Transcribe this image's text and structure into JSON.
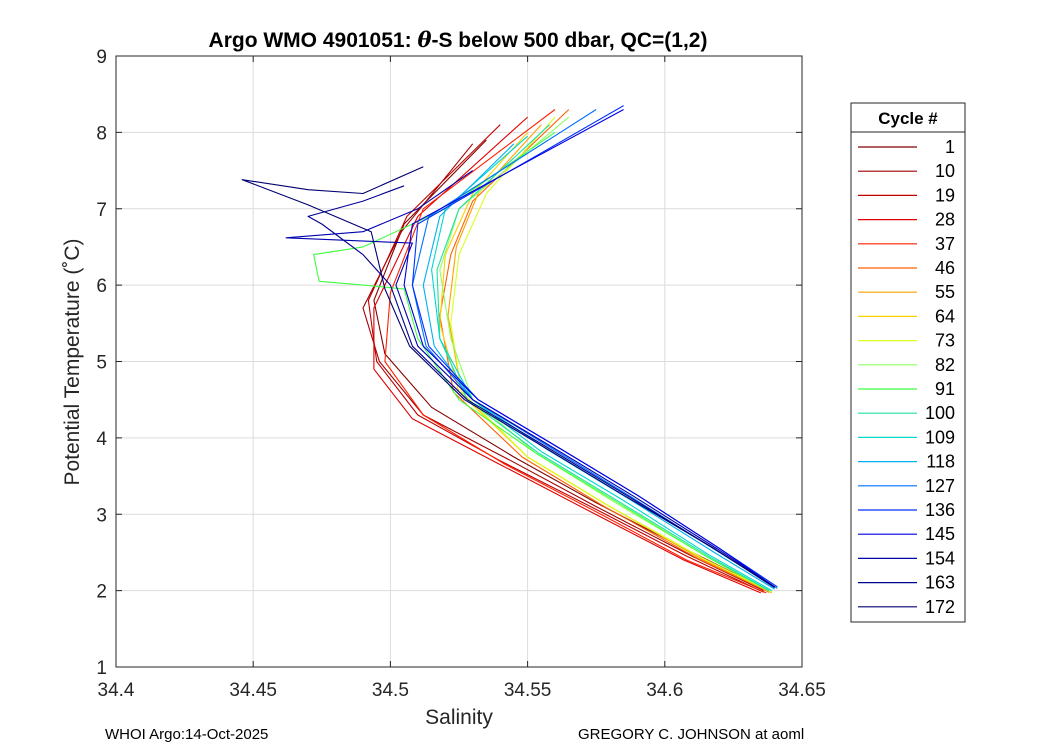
{
  "chart_data": {
    "type": "line",
    "title_parts": {
      "prefix": "Argo WMO 4901051: ",
      "theta": "θ",
      "suffix": "-S below 500 dbar,  QC=(1,2)"
    },
    "xlabel": "Salinity",
    "ylabel": "Potential Temperature (˚C)",
    "xlim": [
      34.4,
      34.65
    ],
    "ylim": [
      1,
      9
    ],
    "xticks": [
      34.4,
      34.45,
      34.5,
      34.55,
      34.6,
      34.65
    ],
    "xtick_labels": [
      "34.4",
      "34.45",
      "34.5",
      "34.55",
      "34.6",
      "34.65"
    ],
    "yticks": [
      1,
      2,
      3,
      4,
      5,
      6,
      7,
      8,
      9
    ],
    "ytick_labels": [
      "1",
      "2",
      "3",
      "4",
      "5",
      "6",
      "7",
      "8",
      "9"
    ],
    "grid": true,
    "legend": {
      "title": "Cycle #",
      "position": "right-outside",
      "entries": [
        {
          "label": "1",
          "color": "#800000"
        },
        {
          "label": "10",
          "color": "#a00000"
        },
        {
          "label": "19",
          "color": "#c00000"
        },
        {
          "label": "28",
          "color": "#e00000"
        },
        {
          "label": "37",
          "color": "#ff2000"
        },
        {
          "label": "46",
          "color": "#ff6000"
        },
        {
          "label": "55",
          "color": "#ffa000"
        },
        {
          "label": "64",
          "color": "#ffd000"
        },
        {
          "label": "73",
          "color": "#d8ff20"
        },
        {
          "label": "82",
          "color": "#90ff60"
        },
        {
          "label": "91",
          "color": "#40ff40"
        },
        {
          "label": "100",
          "color": "#20e0a0"
        },
        {
          "label": "109",
          "color": "#00d8d0"
        },
        {
          "label": "118",
          "color": "#00b0f0"
        },
        {
          "label": "127",
          "color": "#0070ff"
        },
        {
          "label": "136",
          "color": "#0030ff"
        },
        {
          "label": "145",
          "color": "#0000e0"
        },
        {
          "label": "154",
          "color": "#0000b0"
        },
        {
          "label": "163",
          "color": "#000090"
        },
        {
          "label": "172",
          "color": "#000070"
        }
      ]
    },
    "series": [
      {
        "name": "1",
        "color": "#800000",
        "x": [
          34.638,
          34.61,
          34.575,
          34.545,
          34.515,
          34.498,
          34.494,
          34.505,
          34.535
        ],
        "y": [
          2.0,
          2.5,
          3.15,
          3.75,
          4.4,
          5.1,
          5.8,
          6.8,
          7.9
        ]
      },
      {
        "name": "10",
        "color": "#a00000",
        "x": [
          34.636,
          34.61,
          34.575,
          34.544,
          34.512,
          34.496,
          34.49,
          34.504,
          34.53
        ],
        "y": [
          2.0,
          2.45,
          3.1,
          3.7,
          4.3,
          5.0,
          5.7,
          6.7,
          7.85
        ]
      },
      {
        "name": "19",
        "color": "#c00000",
        "x": [
          34.636,
          34.608,
          34.573,
          34.54,
          34.51,
          34.495,
          34.492,
          34.506,
          34.54
        ],
        "y": [
          1.98,
          2.45,
          3.1,
          3.7,
          4.3,
          5.0,
          5.8,
          6.9,
          8.1
        ]
      },
      {
        "name": "28",
        "color": "#e00000",
        "x": [
          34.635,
          34.607,
          34.572,
          34.54,
          34.508,
          34.494,
          34.494,
          34.51,
          34.55
        ],
        "y": [
          1.97,
          2.4,
          3.05,
          3.65,
          4.25,
          4.9,
          5.7,
          6.9,
          8.2
        ]
      },
      {
        "name": "37",
        "color": "#ff2000",
        "x": [
          34.637,
          34.608,
          34.574,
          34.542,
          34.512,
          34.498,
          34.5,
          34.512,
          34.56
        ],
        "y": [
          1.97,
          2.4,
          3.05,
          3.65,
          4.3,
          5.0,
          5.9,
          7.0,
          8.3
        ]
      },
      {
        "name": "46",
        "color": "#ff6000",
        "x": [
          34.638,
          34.612,
          34.578,
          34.548,
          34.523,
          34.518,
          34.522,
          34.53,
          34.565
        ],
        "y": [
          1.98,
          2.42,
          3.1,
          3.75,
          4.6,
          5.6,
          6.4,
          7.1,
          8.3
        ]
      },
      {
        "name": "55",
        "color": "#ffa000",
        "x": [
          34.639,
          34.613,
          34.58,
          34.55,
          34.526,
          34.521,
          34.524,
          34.532,
          34.555
        ],
        "y": [
          1.97,
          2.42,
          3.1,
          3.75,
          4.6,
          5.6,
          6.5,
          7.2,
          8.1
        ]
      },
      {
        "name": "64",
        "color": "#ffd000",
        "x": [
          34.639,
          34.614,
          34.58,
          34.55,
          34.525,
          34.518,
          34.52,
          34.53,
          34.55
        ],
        "y": [
          1.98,
          2.42,
          3.1,
          3.75,
          4.6,
          5.5,
          6.4,
          7.2,
          8.0
        ]
      },
      {
        "name": "73",
        "color": "#d8ff20",
        "x": [
          34.639,
          34.614,
          34.58,
          34.55,
          34.526,
          34.522,
          34.525,
          34.535,
          34.56
        ],
        "y": [
          1.98,
          2.42,
          3.1,
          3.75,
          4.6,
          5.5,
          6.4,
          7.2,
          8.2
        ]
      },
      {
        "name": "82",
        "color": "#90ff60",
        "x": [
          34.638,
          34.615,
          34.582,
          34.553,
          34.53,
          34.522,
          34.518,
          34.525,
          34.565
        ],
        "y": [
          1.99,
          2.45,
          3.15,
          3.8,
          4.5,
          5.3,
          6.2,
          7.0,
          8.2
        ]
      },
      {
        "name": "91",
        "color": "#40ff40",
        "x": [
          34.638,
          34.615,
          34.583,
          34.553,
          34.525,
          34.51,
          34.505,
          34.49,
          34.474,
          34.472,
          34.49,
          34.52,
          34.56
        ],
        "y": [
          2.0,
          2.45,
          3.15,
          3.8,
          4.5,
          5.3,
          5.95,
          6.0,
          6.05,
          6.4,
          6.5,
          7.0,
          8.0
        ]
      },
      {
        "name": "100",
        "color": "#20e0a0",
        "x": [
          34.638,
          34.616,
          34.584,
          34.554,
          34.528,
          34.518,
          34.517,
          34.525,
          34.558
        ],
        "y": [
          2.0,
          2.45,
          3.15,
          3.8,
          4.5,
          5.3,
          6.2,
          7.0,
          8.1
        ]
      },
      {
        "name": "109",
        "color": "#00d8d0",
        "x": [
          34.639,
          34.616,
          34.585,
          34.555,
          34.53,
          34.518,
          34.515,
          34.52,
          34.55
        ],
        "y": [
          2.0,
          2.47,
          3.18,
          3.82,
          4.5,
          5.3,
          6.2,
          7.0,
          7.95
        ]
      },
      {
        "name": "118",
        "color": "#00b0f0",
        "x": [
          34.64,
          34.618,
          34.587,
          34.557,
          34.53,
          34.516,
          34.512,
          34.518,
          34.545
        ],
        "y": [
          2.02,
          2.5,
          3.2,
          3.85,
          4.5,
          5.2,
          6.0,
          6.9,
          7.85
        ]
      },
      {
        "name": "127",
        "color": "#0070ff",
        "x": [
          34.641,
          34.619,
          34.588,
          34.558,
          34.53,
          34.513,
          34.508,
          34.514,
          34.575
        ],
        "y": [
          2.03,
          2.52,
          3.22,
          3.88,
          4.5,
          5.2,
          6.0,
          6.9,
          8.3
        ]
      },
      {
        "name": "136",
        "color": "#0030ff",
        "x": [
          34.641,
          34.62,
          34.59,
          34.56,
          34.532,
          34.514,
          34.508,
          34.51,
          34.585
        ],
        "y": [
          2.05,
          2.55,
          3.25,
          3.9,
          4.5,
          5.2,
          6.0,
          6.8,
          8.35
        ]
      },
      {
        "name": "145",
        "color": "#0000e0",
        "x": [
          34.64,
          34.62,
          34.59,
          34.56,
          34.532,
          34.512,
          34.505,
          34.508,
          34.585
        ],
        "y": [
          2.05,
          2.55,
          3.25,
          3.9,
          4.5,
          5.2,
          6.0,
          6.8,
          8.3
        ]
      },
      {
        "name": "154",
        "color": "#0000b0",
        "x": [
          34.64,
          34.619,
          34.588,
          34.558,
          34.53,
          34.51,
          34.502,
          34.508,
          34.462,
          34.49,
          34.51,
          34.53
        ],
        "y": [
          2.05,
          2.55,
          3.25,
          3.9,
          4.5,
          5.2,
          6.0,
          6.55,
          6.62,
          6.7,
          7.0,
          7.5
        ]
      },
      {
        "name": "163",
        "color": "#000090",
        "x": [
          34.64,
          34.618,
          34.586,
          34.556,
          34.528,
          34.508,
          34.5,
          34.49,
          34.475,
          34.47,
          34.49,
          34.505
        ],
        "y": [
          2.04,
          2.55,
          3.25,
          3.9,
          4.5,
          5.2,
          6.0,
          6.4,
          6.8,
          6.9,
          7.1,
          7.3
        ]
      },
      {
        "name": "172",
        "color": "#000070",
        "x": [
          34.64,
          34.618,
          34.585,
          34.555,
          34.527,
          34.507,
          34.498,
          34.493,
          34.47,
          34.446,
          34.47,
          34.49,
          34.512
        ],
        "y": [
          2.04,
          2.55,
          3.25,
          3.9,
          4.5,
          5.2,
          5.95,
          6.7,
          7.05,
          7.38,
          7.25,
          7.2,
          7.55
        ]
      }
    ]
  },
  "footer": {
    "left": "WHOI Argo:14-Oct-2025",
    "right": "GREGORY C. JOHNSON at aoml"
  }
}
